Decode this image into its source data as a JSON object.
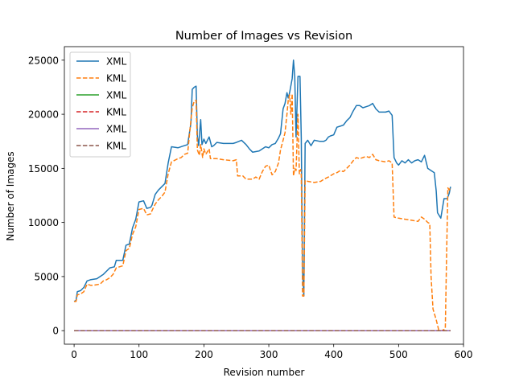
{
  "chart_data": {
    "type": "line",
    "title": "Number of Images vs Revision",
    "xlabel": "Revision number",
    "ylabel": "Number of Images",
    "xlim": [
      -15,
      600
    ],
    "ylim": [
      -1250,
      26250
    ],
    "xticks": [
      0,
      100,
      200,
      300,
      400,
      500,
      600
    ],
    "yticks": [
      0,
      5000,
      10000,
      15000,
      20000,
      25000
    ],
    "grid": false,
    "legend_position": "top-left",
    "series": [
      {
        "name": "XML",
        "color": "#1f77b4",
        "style": "solid",
        "points": [
          [
            0,
            2700
          ],
          [
            3,
            2800
          ],
          [
            5,
            3600
          ],
          [
            10,
            3700
          ],
          [
            15,
            4000
          ],
          [
            20,
            4600
          ],
          [
            25,
            4700
          ],
          [
            35,
            4800
          ],
          [
            40,
            5000
          ],
          [
            45,
            5200
          ],
          [
            55,
            5800
          ],
          [
            62,
            5900
          ],
          [
            65,
            6500
          ],
          [
            75,
            6500
          ],
          [
            80,
            7900
          ],
          [
            85,
            8000
          ],
          [
            90,
            9500
          ],
          [
            95,
            10300
          ],
          [
            100,
            11900
          ],
          [
            107,
            12000
          ],
          [
            112,
            11300
          ],
          [
            118,
            11400
          ],
          [
            120,
            11600
          ],
          [
            125,
            12600
          ],
          [
            130,
            13000
          ],
          [
            135,
            13300
          ],
          [
            140,
            13600
          ],
          [
            145,
            15500
          ],
          [
            150,
            17000
          ],
          [
            160,
            16900
          ],
          [
            170,
            17100
          ],
          [
            175,
            17200
          ],
          [
            180,
            19200
          ],
          [
            182,
            22300
          ],
          [
            185,
            22500
          ],
          [
            188,
            22600
          ],
          [
            190,
            18000
          ],
          [
            192,
            17100
          ],
          [
            195,
            19500
          ],
          [
            197,
            17200
          ],
          [
            200,
            17700
          ],
          [
            203,
            17300
          ],
          [
            208,
            17900
          ],
          [
            212,
            17000
          ],
          [
            215,
            17100
          ],
          [
            220,
            17400
          ],
          [
            230,
            17300
          ],
          [
            245,
            17300
          ],
          [
            250,
            17400
          ],
          [
            258,
            17600
          ],
          [
            265,
            17200
          ],
          [
            270,
            16800
          ],
          [
            275,
            16500
          ],
          [
            285,
            16600
          ],
          [
            295,
            17000
          ],
          [
            300,
            16900
          ],
          [
            305,
            17200
          ],
          [
            310,
            17300
          ],
          [
            315,
            17800
          ],
          [
            318,
            18200
          ],
          [
            322,
            20500
          ],
          [
            325,
            21000
          ],
          [
            328,
            22000
          ],
          [
            330,
            21500
          ],
          [
            332,
            22000
          ],
          [
            336,
            23300
          ],
          [
            338,
            25000
          ],
          [
            340,
            23500
          ],
          [
            342,
            17900
          ],
          [
            345,
            23500
          ],
          [
            348,
            23500
          ],
          [
            350,
            17800
          ],
          [
            352,
            5500
          ],
          [
            354,
            3200
          ],
          [
            356,
            17300
          ],
          [
            360,
            17600
          ],
          [
            365,
            17100
          ],
          [
            370,
            17600
          ],
          [
            378,
            17500
          ],
          [
            385,
            17500
          ],
          [
            388,
            17600
          ],
          [
            392,
            17900
          ],
          [
            395,
            18000
          ],
          [
            400,
            18100
          ],
          [
            405,
            18800
          ],
          [
            410,
            18900
          ],
          [
            415,
            19000
          ],
          [
            420,
            19400
          ],
          [
            425,
            19700
          ],
          [
            430,
            20300
          ],
          [
            435,
            20800
          ],
          [
            440,
            20800
          ],
          [
            445,
            20600
          ],
          [
            450,
            20700
          ],
          [
            455,
            20800
          ],
          [
            460,
            21000
          ],
          [
            465,
            20500
          ],
          [
            470,
            20200
          ],
          [
            480,
            20200
          ],
          [
            485,
            20300
          ],
          [
            490,
            19900
          ],
          [
            493,
            16000
          ],
          [
            497,
            15500
          ],
          [
            500,
            15300
          ],
          [
            505,
            15700
          ],
          [
            510,
            15500
          ],
          [
            515,
            15800
          ],
          [
            520,
            15500
          ],
          [
            525,
            15700
          ],
          [
            530,
            15800
          ],
          [
            535,
            15600
          ],
          [
            540,
            16200
          ],
          [
            545,
            15000
          ],
          [
            550,
            14800
          ],
          [
            555,
            14600
          ],
          [
            558,
            12900
          ],
          [
            560,
            10900
          ],
          [
            565,
            10400
          ],
          [
            570,
            12200
          ],
          [
            575,
            12200
          ],
          [
            578,
            12700
          ],
          [
            580,
            13300
          ]
        ]
      },
      {
        "name": "KML",
        "color": "#ff7f0e",
        "style": "dashed",
        "points": [
          [
            0,
            2700
          ],
          [
            3,
            2700
          ],
          [
            5,
            3300
          ],
          [
            10,
            3400
          ],
          [
            15,
            3600
          ],
          [
            20,
            4300
          ],
          [
            25,
            4200
          ],
          [
            30,
            4200
          ],
          [
            40,
            4300
          ],
          [
            45,
            4600
          ],
          [
            50,
            4700
          ],
          [
            55,
            4900
          ],
          [
            60,
            5200
          ],
          [
            65,
            5800
          ],
          [
            75,
            6000
          ],
          [
            80,
            7400
          ],
          [
            85,
            7600
          ],
          [
            90,
            8900
          ],
          [
            95,
            9600
          ],
          [
            100,
            11200
          ],
          [
            107,
            11300
          ],
          [
            112,
            10700
          ],
          [
            118,
            10800
          ],
          [
            120,
            11100
          ],
          [
            125,
            11700
          ],
          [
            130,
            12100
          ],
          [
            135,
            12400
          ],
          [
            140,
            12800
          ],
          [
            145,
            14500
          ],
          [
            150,
            15600
          ],
          [
            160,
            15900
          ],
          [
            165,
            16000
          ],
          [
            170,
            16300
          ],
          [
            175,
            16400
          ],
          [
            180,
            19500
          ],
          [
            182,
            20600
          ],
          [
            185,
            21200
          ],
          [
            188,
            21300
          ],
          [
            190,
            16700
          ],
          [
            193,
            16200
          ],
          [
            195,
            17200
          ],
          [
            198,
            16000
          ],
          [
            200,
            16800
          ],
          [
            203,
            16300
          ],
          [
            208,
            16800
          ],
          [
            210,
            15900
          ],
          [
            220,
            15900
          ],
          [
            230,
            15800
          ],
          [
            245,
            15700
          ],
          [
            250,
            15800
          ],
          [
            252,
            14300
          ],
          [
            260,
            14300
          ],
          [
            265,
            14000
          ],
          [
            275,
            14000
          ],
          [
            280,
            14200
          ],
          [
            285,
            14000
          ],
          [
            290,
            14700
          ],
          [
            295,
            15200
          ],
          [
            300,
            15300
          ],
          [
            305,
            14400
          ],
          [
            310,
            14700
          ],
          [
            315,
            15500
          ],
          [
            318,
            16700
          ],
          [
            322,
            17600
          ],
          [
            325,
            18300
          ],
          [
            328,
            20000
          ],
          [
            330,
            21300
          ],
          [
            332,
            21800
          ],
          [
            334,
            20000
          ],
          [
            336,
            21900
          ],
          [
            338,
            14300
          ],
          [
            340,
            15000
          ],
          [
            342,
            14800
          ],
          [
            345,
            20000
          ],
          [
            347,
            14500
          ],
          [
            349,
            14900
          ],
          [
            350,
            14400
          ],
          [
            352,
            3200
          ],
          [
            354,
            3200
          ],
          [
            356,
            13900
          ],
          [
            360,
            13800
          ],
          [
            370,
            13700
          ],
          [
            380,
            13800
          ],
          [
            385,
            14000
          ],
          [
            392,
            14200
          ],
          [
            400,
            14500
          ],
          [
            405,
            14600
          ],
          [
            410,
            14800
          ],
          [
            415,
            14700
          ],
          [
            420,
            15000
          ],
          [
            425,
            15300
          ],
          [
            430,
            15700
          ],
          [
            435,
            16000
          ],
          [
            440,
            15900
          ],
          [
            445,
            16000
          ],
          [
            450,
            16100
          ],
          [
            455,
            16000
          ],
          [
            460,
            16300
          ],
          [
            465,
            15800
          ],
          [
            470,
            15700
          ],
          [
            480,
            15600
          ],
          [
            485,
            15700
          ],
          [
            490,
            15500
          ],
          [
            493,
            10500
          ],
          [
            500,
            10400
          ],
          [
            510,
            10300
          ],
          [
            520,
            10200
          ],
          [
            530,
            10100
          ],
          [
            535,
            10500
          ],
          [
            540,
            10300
          ],
          [
            545,
            10000
          ],
          [
            548,
            9900
          ],
          [
            550,
            5000
          ],
          [
            553,
            2000
          ],
          [
            558,
            1000
          ],
          [
            562,
            0
          ],
          [
            566,
            0
          ],
          [
            570,
            100
          ],
          [
            572,
            200
          ],
          [
            574,
            7000
          ],
          [
            576,
            13200
          ],
          [
            578,
            13000
          ],
          [
            580,
            13300
          ]
        ]
      },
      {
        "name": "XML",
        "color": "#2ca02c",
        "style": "solid",
        "points": [
          [
            0,
            0
          ],
          [
            580,
            0
          ]
        ]
      },
      {
        "name": "KML",
        "color": "#d62728",
        "style": "dashed",
        "points": [
          [
            0,
            0
          ],
          [
            580,
            0
          ]
        ]
      },
      {
        "name": "XML",
        "color": "#9467bd",
        "style": "solid",
        "points": [
          [
            0,
            0
          ],
          [
            580,
            0
          ]
        ]
      },
      {
        "name": "KML",
        "color": "#8c564b",
        "style": "dashed",
        "points": [
          [
            0,
            0
          ],
          [
            580,
            0
          ]
        ]
      }
    ]
  }
}
